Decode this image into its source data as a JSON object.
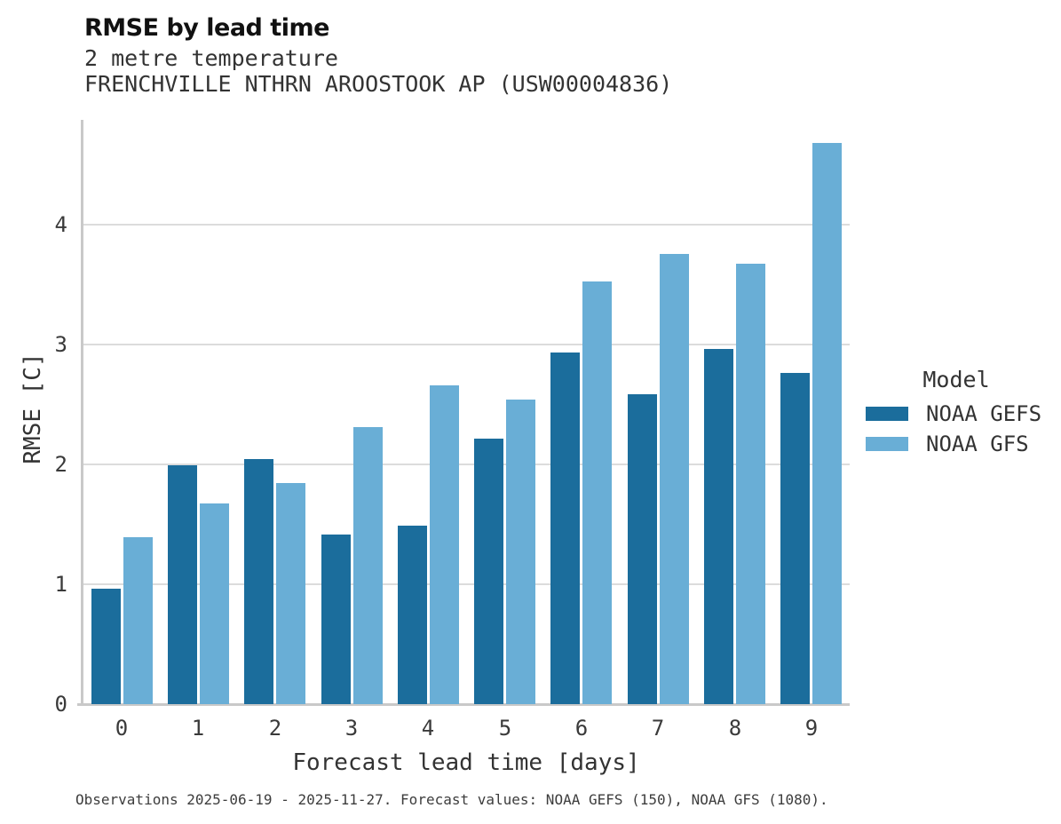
{
  "title": "RMSE by lead time",
  "subtitle1": "2 metre temperature",
  "subtitle2": "FRENCHVILLE NTHRN AROOSTOOK AP (USW00004836)",
  "footer": "Observations 2025-06-19 - 2025-11-27. Forecast values: NOAA GEFS (150), NOAA GFS (1080).",
  "legend": {
    "title": "Model",
    "entries": [
      {
        "label": "NOAA GEFS",
        "color": "#1b6d9c"
      },
      {
        "label": "NOAA GFS",
        "color": "#69aed6"
      }
    ]
  },
  "colors": {
    "gefs": "#1b6d9c",
    "gfs": "#69aed6",
    "gridline": "#dcdcdc",
    "spine": "#c9c9c9",
    "text": "#3a3a3a"
  },
  "chart_data": {
    "type": "bar",
    "title": "RMSE by lead time",
    "subtitle": [
      "2 metre temperature",
      "FRENCHVILLE NTHRN AROOSTOOK AP (USW00004836)"
    ],
    "xlabel": "Forecast lead time [days]",
    "ylabel": "RMSE [C]",
    "categories": [
      "0",
      "1",
      "2",
      "3",
      "4",
      "5",
      "6",
      "7",
      "8",
      "9"
    ],
    "series": [
      {
        "name": "NOAA GEFS",
        "color": "#1b6d9c",
        "values": [
          0.96,
          1.99,
          2.04,
          1.41,
          1.49,
          2.21,
          2.93,
          2.58,
          2.96,
          2.76
        ]
      },
      {
        "name": "NOAA GFS",
        "color": "#69aed6",
        "values": [
          1.39,
          1.67,
          1.84,
          2.31,
          2.66,
          2.54,
          3.52,
          3.75,
          3.67,
          4.68
        ]
      }
    ],
    "ylim": [
      0,
      4.87
    ],
    "yticks": [
      0,
      1,
      2,
      3,
      4
    ],
    "grid": true,
    "legend_title": "Model",
    "legend_position": "right",
    "caption": "Observations 2025-06-19 - 2025-11-27. Forecast values: NOAA GEFS (150), NOAA GFS (1080)."
  }
}
